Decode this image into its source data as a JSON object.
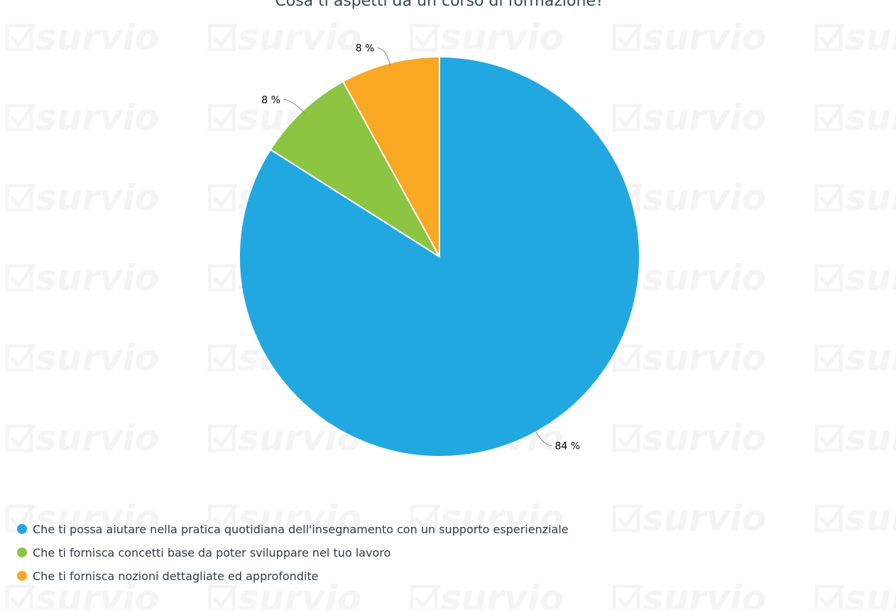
{
  "chart_data": {
    "type": "pie",
    "title": "Cosa ti aspetti da un corso di formazione?",
    "slices": [
      {
        "label": "Che ti possa aiutare nella pratica quotidiana dell'insegnamento con un supporto esperienziale",
        "value": 84,
        "data_label": "84 %",
        "color": "#21a8e0"
      },
      {
        "label": "Che ti fornisca concetti base da poter sviluppare nel tuo lavoro",
        "value": 8,
        "data_label": "8 %",
        "color": "#8cc541"
      },
      {
        "label": "Che ti fornisca nozioni dettagliate ed approfondite",
        "value": 8,
        "data_label": "8 %",
        "color": "#f9a823"
      }
    ],
    "legend_placement": "bottom-left"
  },
  "watermark": {
    "text": "survio",
    "color": "#f4f4f6"
  }
}
